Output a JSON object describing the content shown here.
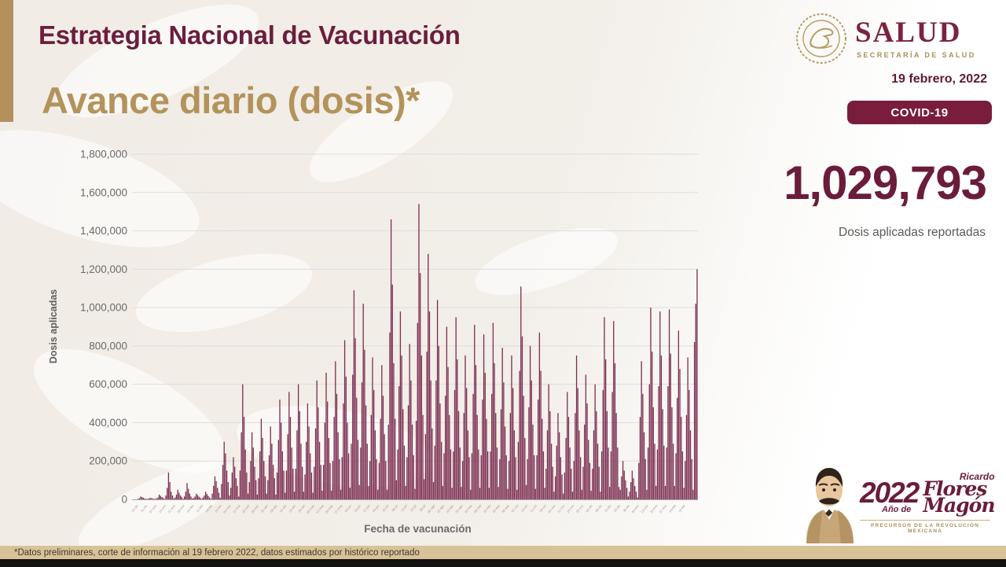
{
  "header": {
    "title": "Estrategia Nacional de Vacunación",
    "subtitle": "Avance diario (dosis)*",
    "logo": {
      "wordmark": "SALUD",
      "tagline": "SECRETARÍA DE SALUD"
    },
    "date": "19 febrero, 2022",
    "badge": "COVID-19"
  },
  "kpi": {
    "value": "1,029,793",
    "label": "Dosis aplicadas reportadas"
  },
  "chart_data": {
    "type": "bar",
    "title": "Avance diario (dosis)",
    "xlabel": "Fecha de vacunación",
    "ylabel": "Dosis aplicadas",
    "ylim": [
      0,
      1800000
    ],
    "ytick_step": 200000,
    "ytick_labels": [
      "0",
      "200,000",
      "400,000",
      "600,000",
      "800,000",
      "1,000,000",
      "1,200,000",
      "1,400,000",
      "1,600,000",
      "1,800,000"
    ],
    "grid": true,
    "bar_color": "#7c2e52",
    "start_date": "2020-12-24",
    "end_date": "2022-02-19",
    "unit": "doses, values stored in thousands",
    "x_week_labels": [
      "24-dic",
      "31-dic",
      "07-ene",
      "14-ene",
      "21-ene",
      "28-ene",
      "04-feb",
      "11-feb",
      "18-feb",
      "25-feb",
      "04-mar",
      "11-mar",
      "18-mar",
      "25-mar",
      "01-abr",
      "08-abr",
      "15-abr",
      "22-abr",
      "29-abr",
      "06-may",
      "13-may",
      "20-may",
      "27-may",
      "03-jun",
      "10-jun",
      "17-jun",
      "24-jun",
      "01-jul",
      "08-jul",
      "15-jul",
      "22-jul",
      "29-jul",
      "05-ago",
      "12-ago",
      "19-ago",
      "26-ago",
      "02-sep",
      "09-sep",
      "16-sep",
      "23-sep",
      "30-sep",
      "07-oct",
      "14-oct",
      "21-oct",
      "28-oct",
      "04-nov",
      "11-nov",
      "18-nov",
      "25-nov",
      "02-dic",
      "09-dic",
      "16-dic",
      "23-dic",
      "30-dic",
      "06-ene",
      "13-ene",
      "20-ene",
      "27-ene",
      "03-feb",
      "10-feb"
    ],
    "values_k": [
      2,
      5,
      15,
      12,
      8,
      5,
      1,
      2,
      4,
      8,
      6,
      5,
      3,
      1,
      5,
      10,
      25,
      18,
      12,
      8,
      2,
      20,
      60,
      140,
      90,
      40,
      20,
      5,
      10,
      25,
      50,
      35,
      20,
      12,
      3,
      15,
      40,
      85,
      55,
      30,
      15,
      4,
      8,
      15,
      30,
      22,
      14,
      8,
      2,
      10,
      20,
      40,
      28,
      18,
      10,
      3,
      30,
      70,
      120,
      95,
      60,
      35,
      8,
      80,
      180,
      300,
      240,
      150,
      90,
      20,
      60,
      140,
      220,
      170,
      110,
      70,
      15,
      150,
      350,
      600,
      430,
      260,
      140,
      30,
      90,
      200,
      350,
      270,
      170,
      100,
      25,
      110,
      250,
      420,
      320,
      200,
      120,
      30,
      100,
      230,
      380,
      290,
      180,
      110,
      25,
      140,
      310,
      520,
      400,
      250,
      150,
      35,
      150,
      340,
      560,
      430,
      270,
      160,
      40,
      160,
      360,
      600,
      460,
      290,
      170,
      40,
      130,
      300,
      500,
      380,
      240,
      140,
      35,
      170,
      370,
      620,
      480,
      300,
      180,
      45,
      180,
      400,
      660,
      510,
      320,
      190,
      45,
      200,
      430,
      720,
      550,
      350,
      210,
      50,
      220,
      500,
      830,
      640,
      400,
      240,
      60,
      290,
      650,
      1090,
      840,
      530,
      310,
      75,
      270,
      610,
      1020,
      780,
      490,
      290,
      70,
      200,
      440,
      740,
      570,
      360,
      210,
      50,
      190,
      420,
      700,
      540,
      340,
      200,
      50,
      390,
      870,
      1460,
      1120,
      710,
      420,
      100,
      260,
      590,
      980,
      750,
      470,
      280,
      70,
      220,
      490,
      810,
      620,
      390,
      230,
      55,
      410,
      920,
      1540,
      1180,
      750,
      440,
      105,
      340,
      770,
      1280,
      980,
      620,
      370,
      90,
      280,
      620,
      1040,
      800,
      500,
      300,
      70,
      240,
      540,
      900,
      690,
      440,
      260,
      60,
      250,
      570,
      950,
      730,
      460,
      270,
      65,
      200,
      450,
      750,
      580,
      360,
      220,
      50,
      240,
      550,
      910,
      700,
      440,
      260,
      60,
      230,
      520,
      860,
      660,
      420,
      250,
      60,
      250,
      550,
      920,
      710,
      450,
      270,
      65,
      210,
      470,
      790,
      610,
      380,
      230,
      55,
      200,
      450,
      750,
      580,
      360,
      220,
      50,
      300,
      670,
      1110,
      850,
      540,
      320,
      75,
      210,
      480,
      800,
      620,
      390,
      230,
      55,
      230,
      520,
      870,
      670,
      420,
      250,
      60,
      160,
      360,
      600,
      460,
      290,
      170,
      40,
      120,
      280,
      450,
      350,
      220,
      130,
      30,
      140,
      320,
      560,
      430,
      270,
      160,
      40,
      200,
      450,
      750,
      580,
      360,
      220,
      50,
      170,
      390,
      650,
      500,
      310,
      190,
      45,
      160,
      360,
      600,
      460,
      290,
      170,
      40,
      250,
      570,
      950,
      730,
      460,
      270,
      65,
      250,
      560,
      930,
      710,
      450,
      270,
      65,
      50,
      120,
      200,
      150,
      100,
      60,
      15,
      40,
      90,
      150,
      110,
      70,
      40,
      10,
      190,
      430,
      720,
      550,
      350,
      210,
      50,
      270,
      600,
      1000,
      770,
      480,
      290,
      70,
      260,
      590,
      980,
      750,
      470,
      280,
      70,
      270,
      590,
      990,
      760,
      480,
      290,
      70,
      240,
      530,
      880,
      680,
      430,
      250,
      60,
      200,
      440,
      740,
      570,
      360,
      210,
      50,
      820,
      1020,
      1200
    ]
  },
  "footer": {
    "note": "*Datos preliminares, corte de información al 19 febrero 2022, datos estimados por histórico reportado"
  },
  "year_logo": {
    "year": "2022",
    "prefix": "Año de",
    "first_name": "Ricardo",
    "script_1": "Flores",
    "script_2": "Magón",
    "tagline": "PRECURSOR DE LA REVOLUCIÓN MEXICANA"
  },
  "colors": {
    "maroon": "#6b1c3b",
    "gold": "#b3935c",
    "footer_tan": "#d9c298",
    "bar": "#7c2e52",
    "axis_text": "#6a6a6a"
  }
}
